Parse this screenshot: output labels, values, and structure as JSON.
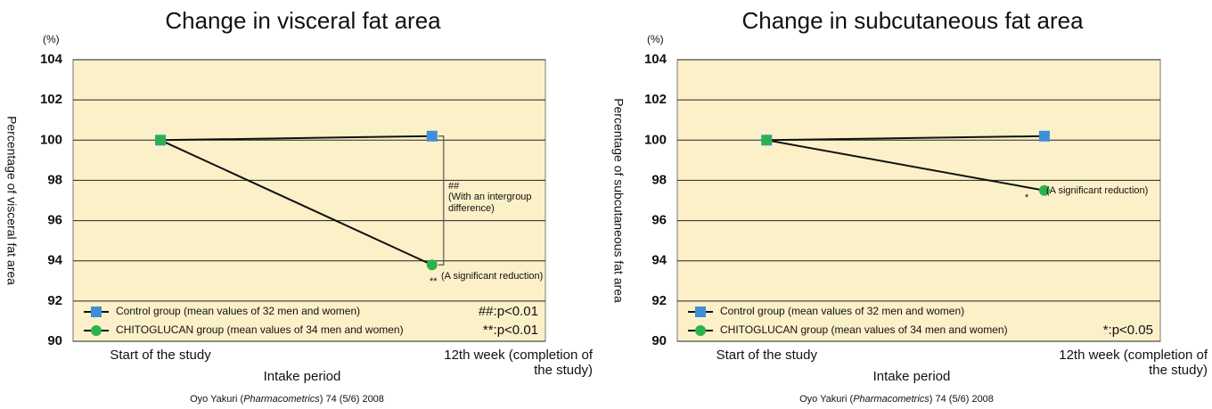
{
  "chart_data": [
    {
      "type": "line",
      "title": "Change in visceral fat area",
      "y_unit": "(%)",
      "y_label": "Percentage of visceral fat area",
      "x_label": "Intake period",
      "categories": [
        "Start of the study",
        "12th week (completion of the study)"
      ],
      "series": [
        {
          "name": "Control group (mean values of 32 men and women)",
          "color": "#3d8fd6",
          "marker": "square",
          "values": [
            100,
            100.2
          ]
        },
        {
          "name": "CHITOGLUCAN group (mean values of 34 men and women)",
          "color": "#2bb24c",
          "marker": "circle",
          "values": [
            100,
            93.8
          ]
        }
      ],
      "ylim": [
        90,
        104
      ],
      "yticks": [
        90,
        92,
        94,
        96,
        98,
        100,
        102,
        104
      ],
      "grid": true,
      "bracket": true,
      "annotations": [
        "##",
        "(With an intergroup difference)",
        "**",
        "(A significant reduction)"
      ],
      "significance": [
        "##:p<0.01",
        "**:p<0.01"
      ],
      "source": [
        "Oyo Yakuri (",
        "Pharmacometrics",
        ") 74 (5/6) 2008"
      ]
    },
    {
      "type": "line",
      "title": "Change in subcutaneous fat area",
      "y_unit": "(%)",
      "y_label": "Percentage of subcutaneous fat area",
      "x_label": "Intake period",
      "categories": [
        "Start of the study",
        "12th week (completion of the study)"
      ],
      "series": [
        {
          "name": "Control group (mean values of 32 men and women)",
          "color": "#3d8fd6",
          "marker": "square",
          "values": [
            100,
            100.2
          ]
        },
        {
          "name": "CHITOGLUCAN group (mean values of 34 men and women)",
          "color": "#2bb24c",
          "marker": "circle",
          "values": [
            100,
            97.5
          ]
        }
      ],
      "ylim": [
        90,
        104
      ],
      "yticks": [
        90,
        92,
        94,
        96,
        98,
        100,
        102,
        104
      ],
      "grid": true,
      "bracket": false,
      "annotations": [
        "*",
        "(A significant reduction)"
      ],
      "significance": [
        "*:p<0.05"
      ],
      "source": [
        "Oyo Yakuri (",
        "Pharmacometrics",
        ") 74 (5/6) 2008"
      ]
    }
  ]
}
